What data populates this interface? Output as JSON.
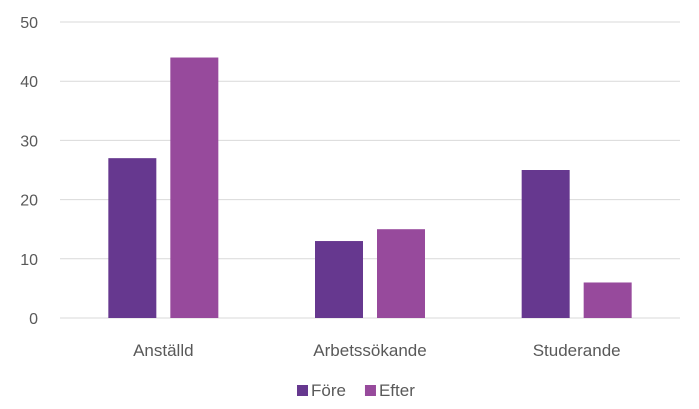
{
  "chart_data": {
    "type": "bar",
    "categories": [
      "Anställd",
      "Arbetssökande",
      "Studerande"
    ],
    "series": [
      {
        "name": "Före",
        "values": [
          27,
          13,
          25
        ],
        "color": "#66388f"
      },
      {
        "name": "Efter",
        "values": [
          44,
          15,
          6
        ],
        "color": "#974a9c"
      }
    ],
    "y_ticks": [
      "0",
      "10",
      "20",
      "30",
      "40",
      "50"
    ],
    "ylim": [
      0,
      50
    ],
    "grid": true,
    "legend_position": "bottom-center",
    "title": "",
    "xlabel": "",
    "ylabel": ""
  }
}
